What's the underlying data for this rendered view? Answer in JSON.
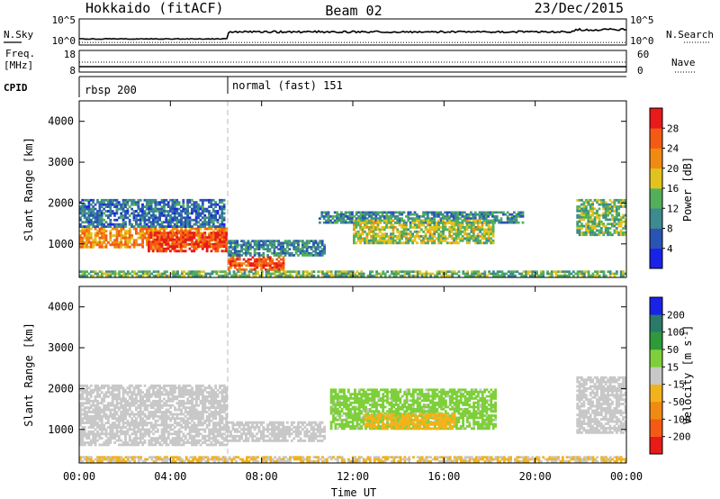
{
  "header": {
    "station": "Hokkaido (fitACF)",
    "beam": "Beam 02",
    "date": "23/Dec/2015"
  },
  "status_panel": {
    "nsky_label": "N.Sky",
    "nsky_ticks": [
      "10^5",
      "10^0"
    ],
    "nsearch_label": "N.Search",
    "nsearch_ticks": [
      "10^5",
      "10^0"
    ],
    "freq_label_1": "Freq.",
    "freq_label_2": "[MHz]",
    "freq_ticks": [
      "18",
      "8"
    ],
    "nave_label": "Nave",
    "nave_ticks": [
      "60",
      "0"
    ],
    "cpid_label": "CPID",
    "cpid_modes": [
      {
        "name": "rbsp 200",
        "start": "00:00"
      },
      {
        "name": "normal (fast) 151",
        "start": "06:30"
      }
    ]
  },
  "axes": {
    "x_label": "Time UT",
    "x_ticks": [
      "00:00",
      "04:00",
      "08:00",
      "12:00",
      "16:00",
      "20:00",
      "00:00"
    ],
    "x_range_hours": [
      0,
      24
    ],
    "y_label": "Slant Range [km]",
    "y_ticks": [
      "1000",
      "2000",
      "3000",
      "4000"
    ],
    "y_range_km": [
      180,
      4500
    ]
  },
  "chart_data": [
    {
      "type": "heatmap",
      "name": "power",
      "colorbar_label": "Power [dB]",
      "colorbar_ticks": [
        "4",
        "8",
        "12",
        "16",
        "20",
        "24",
        "28"
      ],
      "colorbar_range": [
        0,
        32
      ],
      "colors": [
        "#1a22e8",
        "#2a54b4",
        "#3d8a8f",
        "#52b05a",
        "#e2c21e",
        "#f08a12",
        "#f55a14",
        "#e81a1a"
      ],
      "x_unit": "hours UT",
      "y_unit": "km",
      "regions": [
        {
          "t": [
            0.0,
            6.5
          ],
          "r": [
            900,
            1400
          ],
          "value": 22
        },
        {
          "t": [
            3.0,
            6.5
          ],
          "r": [
            800,
            1300
          ],
          "value": 28
        },
        {
          "t": [
            0.0,
            6.4
          ],
          "r": [
            1400,
            2100
          ],
          "value": 8
        },
        {
          "t": [
            6.5,
            9.0
          ],
          "r": [
            350,
            700
          ],
          "value": 26
        },
        {
          "t": [
            6.5,
            10.8
          ],
          "r": [
            700,
            1100
          ],
          "value": 10
        },
        {
          "t": [
            10.5,
            19.5
          ],
          "r": [
            1500,
            1800
          ],
          "value": 10
        },
        {
          "t": [
            12.0,
            18.2
          ],
          "r": [
            1000,
            1600
          ],
          "value": 16
        },
        {
          "t": [
            21.8,
            24.0
          ],
          "r": [
            1200,
            2100
          ],
          "value": 14
        },
        {
          "t": [
            0.0,
            24.0
          ],
          "r": [
            200,
            350
          ],
          "value": 14
        }
      ]
    },
    {
      "type": "heatmap",
      "name": "velocity",
      "colorbar_label": "Velocity [m s^-1]",
      "colorbar_ticks": [
        "200",
        "100",
        "50",
        "15",
        "-15",
        "-50",
        "-100",
        "-200"
      ],
      "colorbar_range": [
        -250,
        250
      ],
      "colors": [
        "#e81a1a",
        "#f55a14",
        "#f08a12",
        "#f2b21c",
        "#c8c8c8",
        "#7ed03a",
        "#2e9a3a",
        "#2a7a6a",
        "#1a22e8"
      ],
      "x_unit": "hours UT",
      "y_unit": "km",
      "regions": [
        {
          "t": [
            0.0,
            6.5
          ],
          "r": [
            600,
            2100
          ],
          "value": 0
        },
        {
          "t": [
            6.5,
            10.8
          ],
          "r": [
            700,
            1200
          ],
          "value": 0
        },
        {
          "t": [
            11.0,
            18.3
          ],
          "r": [
            1000,
            2000
          ],
          "value": 40
        },
        {
          "t": [
            12.5,
            16.5
          ],
          "r": [
            1000,
            1400
          ],
          "value": -60
        },
        {
          "t": [
            21.8,
            24.0
          ],
          "r": [
            900,
            2300
          ],
          "value": 0
        },
        {
          "t": [
            0.0,
            24.0
          ],
          "r": [
            200,
            350
          ],
          "value": -30
        }
      ]
    }
  ]
}
